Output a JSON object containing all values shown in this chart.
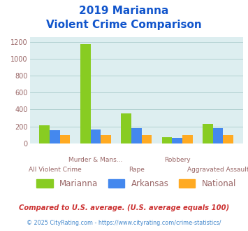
{
  "title_line1": "2019 Marianna",
  "title_line2": "Violent Crime Comparison",
  "categories": [
    "All Violent Crime",
    "Murder & Mans...",
    "Rape",
    "Robbery",
    "Aggravated Assault"
  ],
  "row1_labels": [
    "",
    "Murder & Mans...",
    "",
    "Robbery",
    ""
  ],
  "row2_labels": [
    "All Violent Crime",
    "",
    "Rape",
    "",
    "Aggravated Assault"
  ],
  "marianna": [
    215,
    1175,
    355,
    75,
    225
  ],
  "arkansas": [
    158,
    163,
    178,
    65,
    178
  ],
  "national": [
    95,
    93,
    97,
    97,
    95
  ],
  "colors": {
    "marianna": "#88cc22",
    "arkansas": "#4488ee",
    "national": "#ffaa22"
  },
  "ylim": [
    0,
    1260
  ],
  "yticks": [
    0,
    200,
    400,
    600,
    800,
    1000,
    1200
  ],
  "bar_width": 0.25,
  "plot_bg": "#ddeef0",
  "grid_color": "#aacccc",
  "title_color": "#1155cc",
  "label_color": "#996666",
  "legend_labels": [
    "Marianna",
    "Arkansas",
    "National"
  ],
  "footnote1": "Compared to U.S. average. (U.S. average equals 100)",
  "footnote2": "© 2025 CityRating.com - https://www.cityrating.com/crime-statistics/",
  "footnote1_color": "#cc3333",
  "footnote2_color": "#4488cc",
  "footnote2_prefix_color": "#888888"
}
